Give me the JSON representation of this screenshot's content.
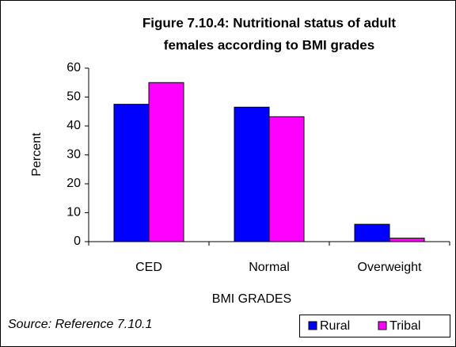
{
  "chart_data": {
    "type": "bar",
    "title": [
      "Figure 7.10.4: Nutritional status of adult",
      "females according to BMI grades"
    ],
    "categories": [
      "CED",
      "Normal",
      "Overweight"
    ],
    "series": [
      {
        "name": "Rural",
        "color": "#0000ff",
        "values": [
          47.5,
          46.5,
          6
        ]
      },
      {
        "name": "Tribal",
        "color": "#ff00ff",
        "values": [
          55,
          43.2,
          1.2
        ]
      }
    ],
    "ylim": [
      0,
      60
    ],
    "yticks": [
      0,
      10,
      20,
      30,
      40,
      50,
      60
    ],
    "ylabel": "Percent",
    "xlabel": "BMI GRADES",
    "annotation": "Source: Reference 7.10.1",
    "grid": false,
    "legend": "bottom-right"
  }
}
